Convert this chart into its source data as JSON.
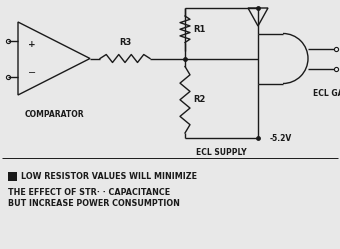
{
  "bg_color": "#e8e8e8",
  "line_color": "#1a1a1a",
  "text_color": "#1a1a1a",
  "annotation_lines": [
    "■  LOW RESISTOR VALUES WILL MINIMIZE",
    "    THE EFFECT OF STR· · CAPACITANCE",
    "    BUT INCREASE POWER CONSUMPTION"
  ],
  "labels": {
    "comparator": "COMPARATOR",
    "r1": "R1",
    "r2": "R2",
    "r3": "R3",
    "ecl_gate": "ECL GATE",
    "ecl_supply": "ECL SUPPLY",
    "voltage": "-5.2V"
  },
  "figsize": [
    3.4,
    2.49
  ],
  "dpi": 100
}
